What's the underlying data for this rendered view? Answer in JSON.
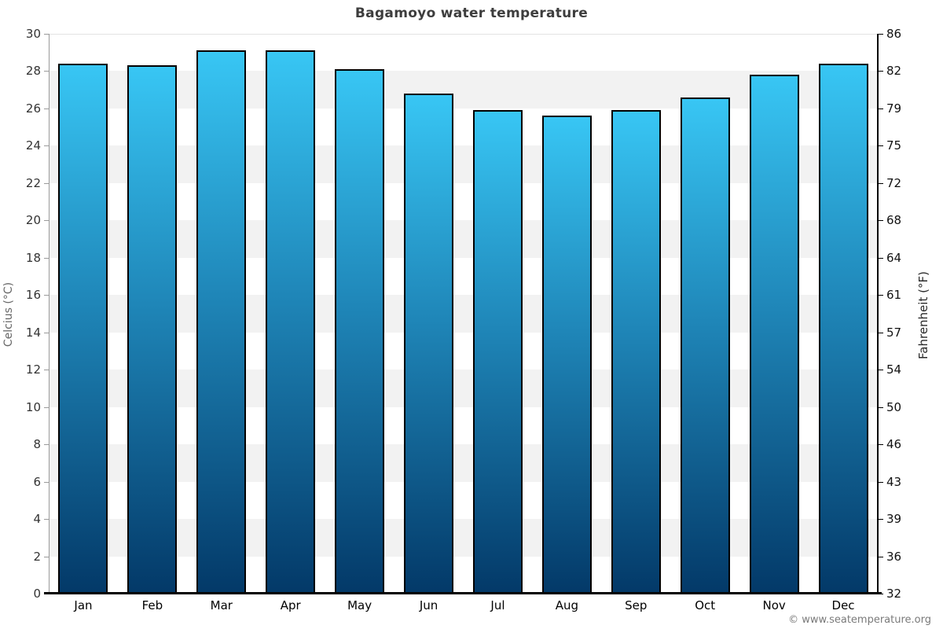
{
  "chart_data": {
    "type": "bar",
    "title": "Bagamoyo water temperature",
    "categories": [
      "Jan",
      "Feb",
      "Mar",
      "Apr",
      "May",
      "Jun",
      "Jul",
      "Aug",
      "Sep",
      "Oct",
      "Nov",
      "Dec"
    ],
    "values": [
      28.4,
      28.3,
      29.1,
      29.1,
      28.1,
      26.8,
      25.9,
      25.6,
      25.9,
      26.6,
      27.8,
      28.4
    ],
    "unit": "°C",
    "ylabel_left": "Celcius (°C)",
    "ylabel_right": "Fahrenheit (°F)",
    "y_left_ticks": [
      0,
      2,
      4,
      6,
      8,
      10,
      12,
      14,
      16,
      18,
      20,
      22,
      24,
      26,
      28,
      30
    ],
    "y_right_ticks": [
      32,
      36,
      39,
      43,
      46,
      50,
      54,
      57,
      61,
      64,
      68,
      72,
      75,
      79,
      82,
      86
    ],
    "ylim": [
      0,
      30
    ],
    "grid": "alternating horizontal stripes every 2°C",
    "legend": "none",
    "colors": {
      "bar_gradient_top": "#38c6f4",
      "bar_gradient_mid": "#1f86b8",
      "bar_gradient_bottom": "#033968",
      "bar_border": "#010101",
      "stripe": "#f2f2f2",
      "axis_bottom": "#000000",
      "title_text": "#3d3d3d"
    },
    "footer": "© www.seatemperature.org"
  }
}
